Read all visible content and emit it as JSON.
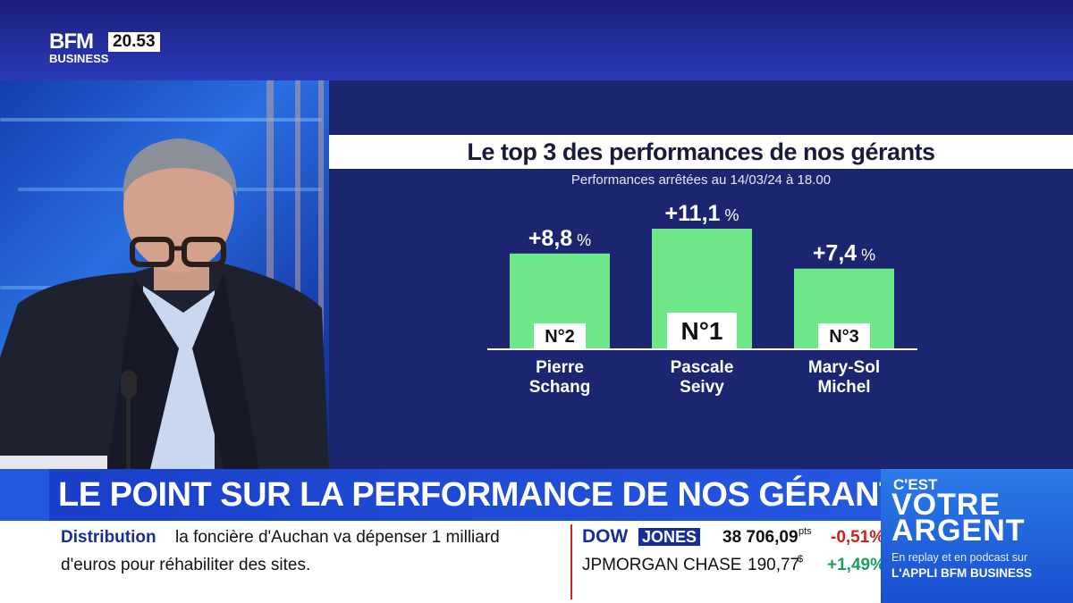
{
  "channel": {
    "logo_top": "BFM",
    "logo_bottom": "BUSINESS",
    "clock": "20.53"
  },
  "chart_data": {
    "type": "bar",
    "title": "Le top 3 des performances de nos gérants",
    "subtitle": "Performances arrêtées au 14/03/24 à 18.00",
    "categories": [
      "Pierre Schang",
      "Pascale Seivy",
      "Mary-Sol Michel"
    ],
    "category_lines": [
      [
        "Pierre",
        "Schang"
      ],
      [
        "Pascale",
        "Seivy"
      ],
      [
        "Mary-Sol",
        "Michel"
      ]
    ],
    "values": [
      8.8,
      11.1,
      7.4
    ],
    "value_labels": [
      "+8,8",
      "+11,1",
      "+7,4"
    ],
    "unit": "%",
    "ranks": [
      "N°2",
      "N°1",
      "N°3"
    ],
    "ylim": [
      0,
      11.1
    ],
    "grid": false,
    "bar_color": "#6fe88a"
  },
  "headline": "LE POINT SUR LA PERFORMANCE DE NOS GÉRANTS",
  "ticker": {
    "category": "Distribution",
    "line1": "la foncière d'Auchan va dépenser 1 milliard",
    "line2": "d'euros pour réhabiliter des sites.",
    "dow_part1": "DOW",
    "dow_part2": "JONES",
    "dow_value": "38 706,09",
    "dow_unit": "pts",
    "dow_change": "-0,51%",
    "stock_name": "JPMORGAN CHASE",
    "stock_value": "190,77",
    "stock_unit": "$",
    "stock_change": "+1,49%"
  },
  "brand": {
    "line1": "C'EST",
    "line2": "VOTRE",
    "line3": "ARGENT",
    "line4": "En replay et en podcast sur",
    "line5": "L'APPLI BFM BUSINESS"
  }
}
